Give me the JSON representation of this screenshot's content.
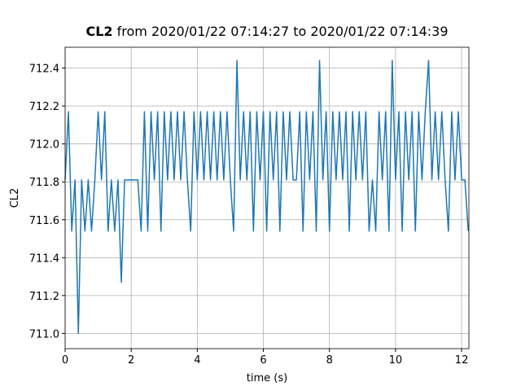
{
  "chart_data": {
    "type": "line",
    "title_prefix": "CL2",
    "title": "from 2020/01/22 07:14:27 to 2020/01/22 07:14:39",
    "x_label": "time (s)",
    "y_label": "CL2",
    "xlim": [
      0,
      12.22
    ],
    "ylim": [
      710.92,
      712.51
    ],
    "xticks": [
      0,
      2,
      4,
      6,
      8,
      10,
      12
    ],
    "yticks": [
      {
        "value": 711,
        "label": "711.0"
      },
      711.2,
      711.4,
      711.6,
      711.8,
      {
        "value": 712,
        "label": "712.0"
      },
      712.2,
      712.4
    ],
    "grid": true,
    "x": [
      0,
      0.1,
      0.2,
      0.3,
      0.4,
      0.5,
      0.6,
      0.7,
      0.8,
      0.9,
      1,
      1.1,
      1.2,
      1.3,
      1.4,
      1.5,
      1.6,
      1.7,
      1.8,
      1.9,
      2,
      2.1,
      2.2,
      2.3,
      2.4,
      2.5,
      2.6,
      2.7,
      2.8,
      2.9,
      3,
      3.1,
      3.2,
      3.3,
      3.4,
      3.5,
      3.6,
      3.7,
      3.8,
      3.9,
      4,
      4.1,
      4.2,
      4.3,
      4.4,
      4.5,
      4.6,
      4.7,
      4.8,
      4.9,
      5,
      5.1,
      5.2,
      5.3,
      5.4,
      5.5,
      5.6,
      5.7,
      5.8,
      5.9,
      6,
      6.1,
      6.2,
      6.3,
      6.4,
      6.5,
      6.6,
      6.7,
      6.8,
      6.9,
      7,
      7.1,
      7.2,
      7.3,
      7.4,
      7.5,
      7.6,
      7.7,
      7.8,
      7.9,
      8,
      8.1,
      8.2,
      8.3,
      8.4,
      8.5,
      8.6,
      8.7,
      8.8,
      8.9,
      9,
      9.1,
      9.2,
      9.3,
      9.4,
      9.5,
      9.6,
      9.7,
      9.8,
      9.9,
      10,
      10.1,
      10.2,
      10.3,
      10.4,
      10.5,
      10.6,
      10.7,
      10.8,
      10.9,
      11,
      11.1,
      11.2,
      11.3,
      11.4,
      11.5,
      11.6,
      11.7,
      11.8,
      11.9,
      12,
      12.1,
      12.2
    ],
    "series": [
      {
        "name": "CL2",
        "color": "#1f77b4",
        "values": [
          711.81,
          712.17,
          711.54,
          711.81,
          711.0,
          711.81,
          711.54,
          711.81,
          711.54,
          711.81,
          712.17,
          711.81,
          712.17,
          711.54,
          711.81,
          711.54,
          711.81,
          711.27,
          711.81,
          711.81,
          711.81,
          711.81,
          711.81,
          711.54,
          712.17,
          711.54,
          712.17,
          711.81,
          712.17,
          711.54,
          712.17,
          711.81,
          712.17,
          711.81,
          712.17,
          711.81,
          712.17,
          711.81,
          711.54,
          712.17,
          711.81,
          712.17,
          711.81,
          712.17,
          711.81,
          712.17,
          711.81,
          712.17,
          711.81,
          712.17,
          711.81,
          711.54,
          712.44,
          711.81,
          712.17,
          711.81,
          712.17,
          711.54,
          712.17,
          711.81,
          712.17,
          711.54,
          712.17,
          711.81,
          712.17,
          711.54,
          712.17,
          711.81,
          712.17,
          711.81,
          711.81,
          712.17,
          711.54,
          712.17,
          711.81,
          712.17,
          711.54,
          712.44,
          711.81,
          712.17,
          711.54,
          712.17,
          711.81,
          712.17,
          711.81,
          712.17,
          711.54,
          712.17,
          711.81,
          712.17,
          711.81,
          712.17,
          711.54,
          711.81,
          711.54,
          712.17,
          711.81,
          712.17,
          711.54,
          712.44,
          711.81,
          712.17,
          711.54,
          712.17,
          711.81,
          712.17,
          711.54,
          712.17,
          711.81,
          712.17,
          712.44,
          711.81,
          712.17,
          711.81,
          712.17,
          711.81,
          711.54,
          712.17,
          711.81,
          712.17,
          711.81,
          711.81,
          711.54
        ]
      }
    ]
  }
}
